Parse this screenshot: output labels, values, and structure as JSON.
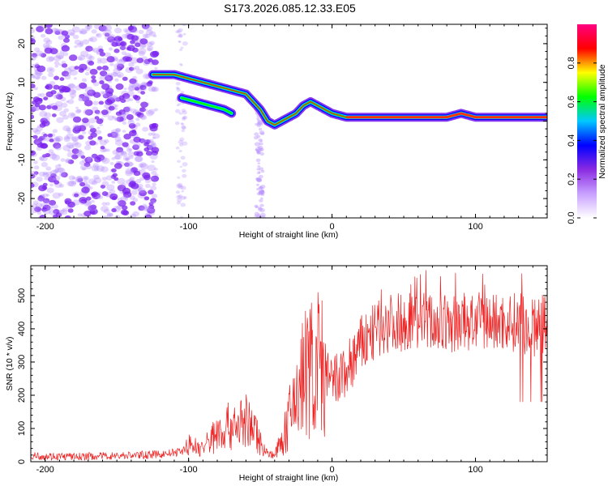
{
  "page_title": "S173.2026.085.12.33.E05",
  "colors": {
    "snr_line": "#ee2222",
    "scatter": "#7a22ee",
    "colorbar": [
      "#ffffff",
      "#c8a0ff",
      "#8a2be2",
      "#0000ff",
      "#00c8ff",
      "#00ff00",
      "#ffff00",
      "#ff0000",
      "#ff0080"
    ]
  },
  "chart_data": [
    {
      "type": "heatmap",
      "title": "S173.2026.085.12.33.E05",
      "xlabel": "Height of straight line (km)",
      "ylabel": "Frequency (Hz)",
      "xlim": [
        -210,
        150
      ],
      "ylim": [
        -25,
        25
      ],
      "x_ticks": [
        -200,
        -100,
        0,
        100
      ],
      "x_tick_labels": [
        "-200",
        "-100",
        "0",
        "100"
      ],
      "y_ticks": [
        20,
        10,
        0,
        -10,
        -20
      ],
      "y_tick_labels": [
        "20",
        "10",
        "0",
        "-10",
        "-20"
      ],
      "colorbar": {
        "label": "Normalized spectral amplitude",
        "range": [
          0,
          1
        ],
        "ticks": [
          0.0,
          0.2,
          0.4,
          0.6,
          0.8
        ],
        "tick_labels": [
          "0.0",
          "0.2",
          "0.4",
          "0.6",
          "0.8"
        ]
      },
      "ridge": {
        "x": [
          -125,
          -110,
          -100,
          -90,
          -80,
          -70,
          -60,
          -55,
          -50,
          -45,
          -40,
          -35,
          -30,
          -25,
          -20,
          -15,
          -10,
          -5,
          0,
          10,
          20,
          40,
          60,
          80,
          90,
          100,
          110,
          120,
          140,
          150
        ],
        "y": [
          12,
          12,
          11,
          10,
          9,
          8,
          7,
          5,
          3,
          0,
          -1,
          0,
          1,
          2,
          4,
          5,
          4,
          3,
          2,
          1,
          1,
          1,
          1,
          1,
          2,
          1,
          1,
          1,
          1,
          1
        ]
      },
      "lower_branch": {
        "x": [
          -105,
          -95,
          -85,
          -75,
          -70
        ],
        "y": [
          6,
          5,
          4,
          3,
          2
        ]
      }
    },
    {
      "type": "line",
      "xlabel": "Height of straight line (km)",
      "ylabel": "SNR (10 * v/v)",
      "xlim": [
        -210,
        150
      ],
      "ylim": [
        0,
        590
      ],
      "x_ticks": [
        -200,
        -100,
        0,
        100
      ],
      "x_tick_labels": [
        "-200",
        "-100",
        "0",
        "100"
      ],
      "y_ticks": [
        0,
        100,
        200,
        300,
        400,
        500
      ],
      "y_tick_labels": [
        "0",
        "100",
        "200",
        "300",
        "400",
        "500"
      ],
      "series": [
        {
          "name": "SNR",
          "x": [
            -210,
            -180,
            -150,
            -120,
            -105,
            -100,
            -90,
            -80,
            -70,
            -60,
            -55,
            -50,
            -45,
            -40,
            -35,
            -30,
            -25,
            -20,
            -15,
            -10,
            -5,
            0,
            10,
            20,
            30,
            40,
            50,
            60,
            70,
            80,
            90,
            100,
            110,
            120,
            130,
            135,
            140,
            145,
            150
          ],
          "values": [
            18,
            15,
            18,
            22,
            30,
            50,
            40,
            90,
            110,
            120,
            100,
            60,
            25,
            20,
            60,
            120,
            200,
            260,
            280,
            300,
            270,
            230,
            270,
            350,
            390,
            420,
            420,
            430,
            420,
            410,
            420,
            420,
            420,
            420,
            420,
            410,
            400,
            410,
            420
          ]
        }
      ]
    }
  ]
}
